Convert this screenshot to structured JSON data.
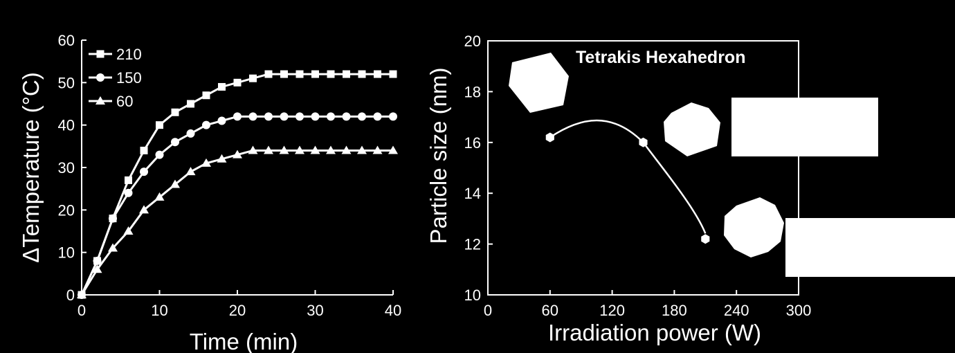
{
  "colors": {
    "background": "#000000",
    "foreground": "#ffffff"
  },
  "chart_data": [
    {
      "type": "line",
      "xlabel": "Time (min)",
      "ylabel": "ΔTemperature (°C)",
      "xlim": [
        0,
        40
      ],
      "ylim": [
        0,
        60
      ],
      "xticks": [
        "0",
        "10",
        "20",
        "30",
        "40"
      ],
      "yticks": [
        "0",
        "10",
        "20",
        "30",
        "40",
        "50",
        "60"
      ],
      "grid": false,
      "legend_position": "top-left",
      "x": [
        0,
        2,
        4,
        6,
        8,
        10,
        12,
        14,
        16,
        18,
        20,
        22,
        24,
        26,
        28,
        30,
        32,
        34,
        36,
        38,
        40
      ],
      "series": [
        {
          "name": "210",
          "marker": "square",
          "values": [
            0,
            8,
            18,
            27,
            34,
            40,
            43,
            45,
            47,
            49,
            50,
            51,
            52,
            52,
            52,
            52,
            52,
            52,
            52,
            52,
            52
          ]
        },
        {
          "name": "150",
          "marker": "circle",
          "values": [
            0,
            8,
            18,
            24,
            29,
            33,
            36,
            38,
            40,
            41,
            42,
            42,
            42,
            42,
            42,
            42,
            42,
            42,
            42,
            42,
            42
          ]
        },
        {
          "name": "60",
          "marker": "triangle",
          "values": [
            0,
            6,
            11,
            15,
            20,
            23,
            26,
            29,
            31,
            32,
            33,
            34,
            34,
            34,
            34,
            34,
            34,
            34,
            34,
            34,
            34
          ]
        }
      ]
    },
    {
      "type": "scatter",
      "xlabel": "Irradiation power (W)",
      "ylabel": "Particle size (nm)",
      "xlim": [
        0,
        300
      ],
      "ylim": [
        10,
        20
      ],
      "xticks": [
        "0",
        "60",
        "120",
        "180",
        "240",
        "300"
      ],
      "yticks": [
        "10",
        "12",
        "14",
        "16",
        "18",
        "20"
      ],
      "grid": false,
      "annotation": "Tetrakis Hexahedron",
      "trend_line": "smooth curve through points",
      "points": [
        {
          "x": 60,
          "y": 16.2
        },
        {
          "x": 150,
          "y": 16.0
        },
        {
          "x": 210,
          "y": 12.2
        }
      ],
      "shape_icons": [
        "heptagon",
        "octagon",
        "decagon"
      ]
    }
  ]
}
